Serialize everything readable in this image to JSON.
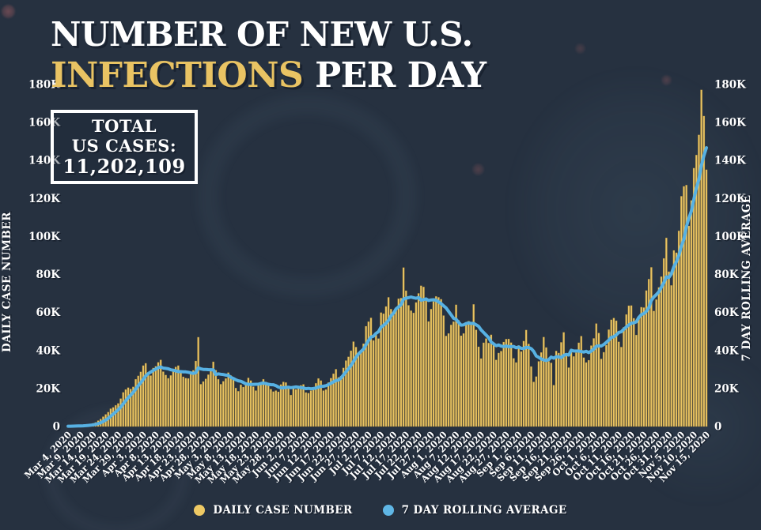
{
  "page": {
    "background": "#263140"
  },
  "header": {
    "title_line1": "NUMBER OF NEW U.S.",
    "title_line2_highlight": "INFECTIONS",
    "title_line2_rest": " PER DAY",
    "highlight_color": "#e9c363"
  },
  "total_box": {
    "line1": "TOTAL",
    "line2": "US CASES:",
    "value": "11,202,109"
  },
  "legend": [
    {
      "label": "DAILY CASE NUMBER",
      "color": "#eec964",
      "shape": "circle"
    },
    {
      "label": "7 DAY ROLLING AVERAGE",
      "color": "#5fb6e5",
      "shape": "circle"
    }
  ],
  "chart_data": {
    "type": "bar",
    "title": "Number of new U.S. infections per day",
    "ylabel_left": "DAILY CASE NUMBER",
    "ylabel_right": "7 DAY ROLLING AVERAGE",
    "ylim": [
      0,
      180000
    ],
    "ytick_step": 20000,
    "ytick_labels": [
      "0",
      "20K",
      "40K",
      "60K",
      "80K",
      "100K",
      "120K",
      "140K",
      "160K",
      "180K"
    ],
    "grid": "off",
    "legend_position": "bottom-center",
    "bar_color": "#e9c462",
    "line_color": "#57b1e3",
    "xtick_every": 5,
    "xtick_labels": [
      "Mar 4, 2020",
      "Mar 9, 2020",
      "Mar 14, 2020",
      "Mar 19, 2020",
      "Mar 24, 2020",
      "Mar 29, 2020",
      "Apr 3, 2020",
      "Apr 8, 2020",
      "Apr 13, 2020",
      "Apr 18, 2020",
      "Apr 23, 2020",
      "Apr 28, 2020",
      "May 3, 2020",
      "May 8, 2020",
      "May 13, 2020",
      "May 18, 2020",
      "May 23, 2020",
      "May 28, 2020",
      "Jun 2, 2020",
      "Jun 7, 2020",
      "Jun 12, 2020",
      "Jun 17, 2020",
      "Jun 22, 2020",
      "Jun 27, 2020",
      "Jul 2, 2020",
      "Jul 7, 2020",
      "Jul 12, 2020",
      "Jul 17, 2020",
      "Jul 22, 2020",
      "Jul 27, 2020",
      "Aug 1, 2020",
      "Aug 7, 2020",
      "Aug 12, 2020",
      "Aug 17, 2020",
      "Aug 22, 2020",
      "Aug 27, 2020",
      "Sep 1, 2020",
      "Sep 6, 2020",
      "Sep 11, 2020",
      "Sep 16, 2020",
      "Sep 21, 2020",
      "Sep 26, 2020",
      "Oct 1, 2020",
      "Oct 6, 2020",
      "Oct 11, 2020",
      "Oct 16, 2020",
      "Oct 21, 2020",
      "Oct 26, 2020",
      "Oct 31, 2020",
      "Nov 5, 2020",
      "Nov 10, 2020",
      "Nov 15, 2020"
    ],
    "series": [
      {
        "name": "DAILY CASE NUMBER",
        "type": "bar",
        "values": [
          150,
          220,
          280,
          340,
          420,
          560,
          680,
          780,
          1000,
          1300,
          1700,
          2200,
          3100,
          4000,
          5200,
          6400,
          7600,
          9400,
          10100,
          11200,
          12200,
          14700,
          18000,
          19500,
          20500,
          19800,
          20900,
          24900,
          26700,
          28800,
          32100,
          33300,
          28200,
          26800,
          30800,
          31700,
          33800,
          35100,
          28900,
          27100,
          25400,
          26900,
          30300,
          31400,
          32100,
          29100,
          26200,
          25500,
          25300,
          28100,
          29600,
          34500,
          47000,
          22300,
          23700,
          25100,
          27300,
          29300,
          34100,
          29700,
          24900,
          22300,
          23800,
          25300,
          28400,
          26900,
          25300,
          20300,
          18600,
          22000,
          20800,
          23200,
          25600,
          24200,
          21000,
          18900,
          22300,
          23300,
          24900,
          23500,
          21700,
          19700,
          18400,
          18900,
          18300,
          22100,
          23500,
          23200,
          20600,
          16600,
          20400,
          19600,
          21100,
          21700,
          22200,
          17900,
          17600,
          18900,
          20700,
          22800,
          25300,
          24200,
          18900,
          19500,
          23200,
          25500,
          27800,
          30200,
          25900,
          26600,
          30900,
          34700,
          36700,
          39900,
          44700,
          41800,
          38600,
          40100,
          43600,
          52800,
          55200,
          57200,
          45300,
          49000,
          46300,
          60000,
          59400,
          63200,
          68000,
          61800,
          58800,
          62200,
          67300,
          67600,
          83700,
          71500,
          63800,
          61000,
          59800,
          65300,
          70100,
          74100,
          73500,
          66300,
          55300,
          61800,
          65800,
          68500,
          68000,
          67000,
          58400,
          47700,
          49000,
          53500,
          55200,
          64100,
          56000,
          47800,
          49000,
          53800,
          55500,
          53600,
          64300,
          50900,
          42000,
          35800,
          44100,
          46300,
          44000,
          48300,
          44200,
          35100,
          38700,
          39700,
          44500,
          46000,
          46100,
          44200,
          35900,
          33700,
          42700,
          39500,
          45000,
          50800,
          43500,
          31600,
          23500,
          26300,
          34300,
          39000,
          47100,
          41600,
          34300,
          33500,
          21800,
          39800,
          38700,
          44300,
          49600,
          38100,
          31000,
          39500,
          36900,
          38900,
          44100,
          47600,
          36300,
          33700,
          34900,
          42600,
          46400,
          54200,
          49200,
          35600,
          39100,
          42800,
          51000,
          56200,
          57100,
          55700,
          44600,
          41800,
          52300,
          59000,
          63600,
          63700,
          57000,
          48200,
          58100,
          62800,
          62600,
          71600,
          77600,
          83800,
          60800,
          66800,
          73200,
          78900,
          88500,
          99300,
          81500,
          74300,
          92700,
          91500,
          103000,
          121200,
          126400,
          127100,
          105600,
          119000,
          136000,
          142900,
          153500,
          177200,
          163400,
          135200
        ]
      },
      {
        "name": "7 DAY ROLLING AVERAGE",
        "type": "line",
        "derived": "7-day rolling mean of the daily values"
      }
    ]
  }
}
